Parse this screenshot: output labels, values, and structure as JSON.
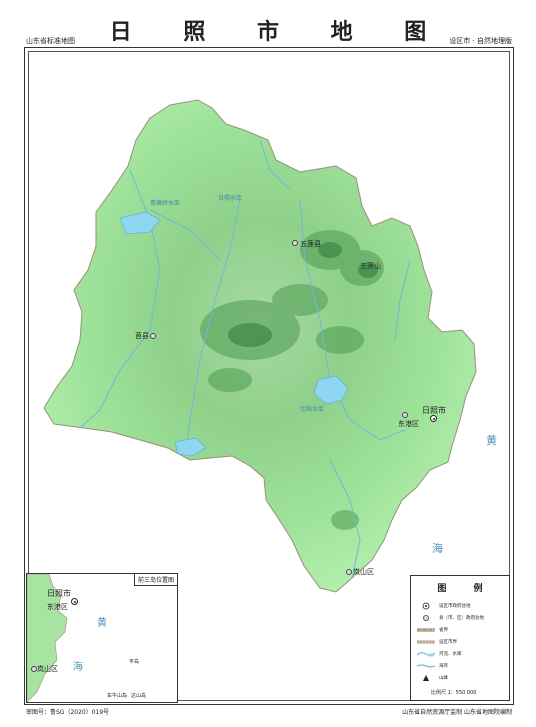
{
  "header": {
    "title": "日 照 市 地 图",
    "left_note": "山东省标准地图",
    "right_note": "设区市 · 自然地理版"
  },
  "map": {
    "places": [
      {
        "name": "五莲县",
        "kind": "county"
      },
      {
        "name": "莒县",
        "kind": "county"
      },
      {
        "name": "日照市",
        "kind": "city"
      },
      {
        "name": "东港区",
        "kind": "district"
      },
      {
        "name": "岚山区",
        "kind": "district"
      }
    ],
    "water": [
      "日照水库",
      "青峰岭水库",
      "仕阳水库"
    ],
    "peak": "五莲山",
    "sea_chars": [
      "黄",
      "海"
    ]
  },
  "inset": {
    "title": "前三岛位置图",
    "places": [
      "日照市",
      "东港区",
      "岚山区"
    ],
    "islands": [
      "平岛",
      "达山岛",
      "车牛山岛"
    ],
    "sea_chars": [
      "黄",
      "海"
    ]
  },
  "legend": {
    "title": "图 例",
    "items": [
      "设区市政府驻地",
      "县（市、区）政府驻地",
      "省界",
      "设区市界",
      "河流、水库",
      "海岸",
      "山峰"
    ],
    "scale": "比例尺 1：550 000"
  },
  "footer": {
    "left": "审图号：鲁SG（2020）019号",
    "right": "山东省自然资源厅监制  山东省地图院编制"
  }
}
